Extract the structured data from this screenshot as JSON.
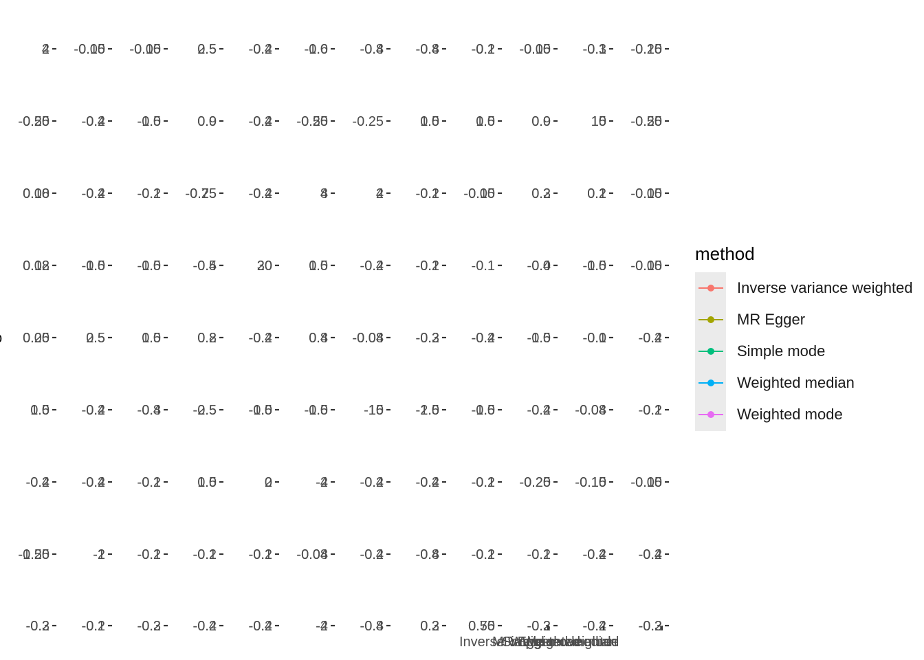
{
  "chart_data": {
    "type": "scatter",
    "title": "",
    "xlabel": "",
    "ylabel": "",
    "grid": false,
    "legend_position": "right",
    "columns": 12,
    "rows": 9,
    "panels": [
      [
        [
          "2",
          "4"
        ],
        [
          "-0.05",
          "-0.10"
        ],
        [
          "-0.05",
          "-0.10"
        ],
        [
          "2.5",
          "0.5"
        ],
        [
          "-0.2",
          "-0.4"
        ],
        [
          "-0.6",
          "-1.0"
        ],
        [
          "-0.4",
          "-0.8"
        ],
        [
          "-0.4",
          "-0.8"
        ],
        [
          "-0.2",
          "-0.1"
        ],
        [
          "-0.05",
          "-0.10"
        ],
        [
          "-0.3",
          "-0.1"
        ],
        [
          "-0.20",
          "-0.15"
        ]
      ],
      [
        [
          "-0.25",
          "-0.50"
        ],
        [
          "-0.2",
          "-0.4"
        ],
        [
          "-1.0",
          "-0.5"
        ],
        [
          "0.0",
          "0.9"
        ],
        [
          "-0.2",
          "-0.4"
        ],
        [
          "-0.25",
          "-0.50"
        ],
        [
          "-0.25"
        ],
        [
          "1.0",
          "0.5"
        ],
        [
          "1.0",
          "0.5"
        ],
        [
          "0.0",
          "0.9"
        ],
        [
          "10",
          "15"
        ],
        [
          "-0.25",
          "-0.50"
        ]
      ],
      [
        [
          "0.08",
          "0.10"
        ],
        [
          "-0.2",
          "-0.4"
        ],
        [
          "-0.2",
          "-0.1"
        ],
        [
          "-0.75",
          "-0.25"
        ],
        [
          "-0.2",
          "-0.4"
        ],
        [
          "8",
          "4"
        ],
        [
          "2",
          "4"
        ],
        [
          "-0.2",
          "-0.1"
        ],
        [
          "-0.05",
          "-0.10"
        ],
        [
          "0.2",
          "0.3"
        ],
        [
          "0.2",
          "0.1"
        ],
        [
          "-0.05",
          "-0.10"
        ]
      ],
      [
        [
          "0.08",
          "0.12"
        ],
        [
          "-1.0",
          "-0.5"
        ],
        [
          "-1.0",
          "-0.5"
        ],
        [
          "-0.5",
          "-0.4"
        ],
        [
          "20",
          "30"
        ],
        [
          "0.5",
          "1.0"
        ],
        [
          "-0.2",
          "-0.4"
        ],
        [
          "-0.2",
          "-0.1"
        ],
        [
          "-0.1"
        ],
        [
          "-0.4",
          "-0.0"
        ],
        [
          "-1.0",
          "-0.5"
        ],
        [
          "-0.05",
          "-0.10"
        ]
      ],
      [
        [
          "0.25",
          "0.00"
        ],
        [
          "2.5",
          "0.5"
        ],
        [
          "1.0",
          "0.5"
        ],
        [
          "0.2",
          "0.8"
        ],
        [
          "-0.2",
          "-0.4"
        ],
        [
          "0.8",
          "0.4"
        ],
        [
          "-0.08",
          "-0.04"
        ],
        [
          "-0.2",
          "-0.3"
        ],
        [
          "-0.2",
          "-0.4"
        ],
        [
          "-1.0",
          "-0.5"
        ],
        [
          "-0.0",
          "-0.1"
        ],
        [
          "-0.2",
          "-0.4"
        ]
      ],
      [
        [
          "0.5",
          "1.0"
        ],
        [
          "-0.2",
          "-0.4"
        ],
        [
          "-0.8",
          "-0.4"
        ],
        [
          "-2.5",
          "-0.5"
        ],
        [
          "-0.5",
          "-1.0"
        ],
        [
          "-0.5",
          "-1.0"
        ],
        [
          "-10",
          "-15"
        ],
        [
          "-2.5",
          "-1.0"
        ],
        [
          "-1.0",
          "-0.5"
        ],
        [
          "-0.2",
          "-0.4"
        ],
        [
          "-0.08",
          "-0.04"
        ],
        [
          "-0.2",
          "-0.1"
        ]
      ],
      [
        [
          "-0.2",
          "-0.4"
        ],
        [
          "-0.2",
          "-0.4"
        ],
        [
          "-0.2",
          "-0.1"
        ],
        [
          "1.0",
          "0.5"
        ],
        [
          "2",
          "0"
        ],
        [
          "-4",
          "-2"
        ],
        [
          "-0.2",
          "-0.4"
        ],
        [
          "-0.2",
          "-0.4"
        ],
        [
          "-0.2",
          "-0.1"
        ],
        [
          "-0.25",
          "-0.20"
        ],
        [
          "-0.15",
          "-0.10"
        ],
        [
          "-0.05",
          "-0.10"
        ]
      ],
      [
        [
          "-0.50",
          "-1.25"
        ],
        [
          "-2",
          "-1"
        ],
        [
          "-0.2",
          "-0.1"
        ],
        [
          "-0.2",
          "-0.1"
        ],
        [
          "-0.2",
          "-0.1"
        ],
        [
          "-0.08",
          "-0.04"
        ],
        [
          "-0.4",
          "-0.2"
        ],
        [
          "-0.8",
          "-0.4"
        ],
        [
          "-0.2",
          "-0.1"
        ],
        [
          "-0.2",
          "-0.1"
        ],
        [
          "-0.4",
          "-0.2"
        ],
        [
          "-0.4",
          "-0.2"
        ]
      ],
      [
        [
          "-0.2",
          "-0.3"
        ],
        [
          "-0.2",
          "-0.1"
        ],
        [
          "-0.2",
          "-0.3"
        ],
        [
          "-0.4",
          "-0.2"
        ],
        [
          "-0.4",
          "-0.2"
        ],
        [
          "-2",
          "-4"
        ],
        [
          "-0.4",
          "-0.8"
        ],
        [
          "0.2",
          "0.3"
        ],
        [
          "0.50",
          "0.75"
        ],
        [
          "-0.3",
          "-0.2"
        ],
        [
          "-0.4",
          "-0.2"
        ],
        [
          "-0.3",
          "-0.2"
        ]
      ]
    ],
    "series": [
      {
        "name": "Inverse variance weighted",
        "color": "#F8766D"
      },
      {
        "name": "MR Egger",
        "color": "#A3A500"
      },
      {
        "name": "Simple mode",
        "color": "#00BF7D"
      },
      {
        "name": "Weighted median",
        "color": "#00B0F6"
      },
      {
        "name": "Weighted mode",
        "color": "#E76BF3"
      }
    ],
    "x_tick_labels": [
      "Inverse variance weighted",
      "MR Egger",
      "Simple mode",
      "Weighted median",
      "Weighted mode"
    ]
  },
  "legend": {
    "title": "method",
    "items": [
      {
        "label": "Inverse variance weighted",
        "color": "#F8766D"
      },
      {
        "label": "MR Egger",
        "color": "#A3A500"
      },
      {
        "label": "Simple mode",
        "color": "#00BF7D"
      },
      {
        "label": "Weighted median",
        "color": "#00B0F6"
      },
      {
        "label": "Weighted mode",
        "color": "#E76BF3"
      }
    ]
  }
}
